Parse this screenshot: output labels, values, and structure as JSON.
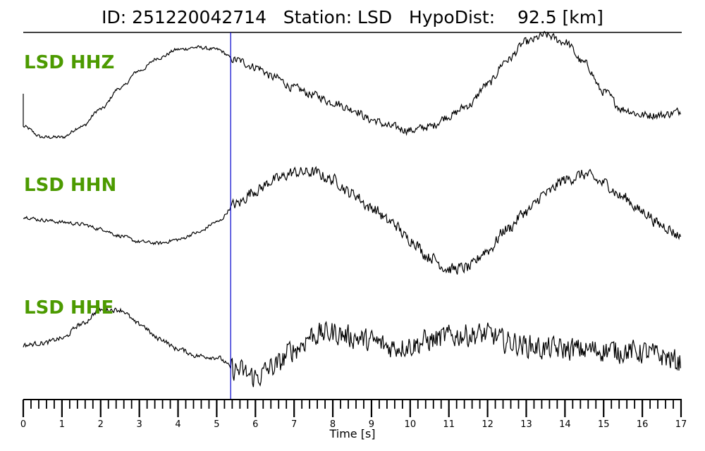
{
  "chart_data": {
    "type": "line",
    "title": "ID: 251220042714   Station: LSD   HypoDist:    92.5 [km]",
    "xlabel": "Time [s]",
    "ylabel": "",
    "xlim": [
      0,
      17
    ],
    "x_ticks": [
      "0",
      "1",
      "2",
      "3",
      "4",
      "5",
      "6",
      "7",
      "8",
      "9",
      "10",
      "11",
      "12",
      "13",
      "14",
      "15",
      "16",
      "17"
    ],
    "minor_tick_step": 0.2,
    "pick_time": 5.36,
    "pick_color": "#0000cc",
    "label_color": "#4c9a00",
    "x_step": 0.5,
    "series": [
      {
        "name": "LSD HHZ",
        "noise_pre": 0.03,
        "noise_post": 0.07,
        "values": [
          -0.73,
          -0.93,
          -0.93,
          -0.73,
          -0.4,
          0,
          0.33,
          0.57,
          0.73,
          0.77,
          0.73,
          0.53,
          0.4,
          0.2,
          0,
          -0.13,
          -0.27,
          -0.4,
          -0.6,
          -0.73,
          -0.8,
          -0.73,
          -0.53,
          -0.33,
          0.07,
          0.53,
          0.87,
          1.0,
          0.87,
          0.47,
          -0.07,
          -0.4,
          -0.51,
          -0.51,
          -0.44
        ]
      },
      {
        "name": "LSD HHN",
        "noise_pre": 0.03,
        "noise_post": 0.1,
        "values": [
          0.03,
          -0.03,
          -0.07,
          -0.11,
          -0.2,
          -0.33,
          -0.44,
          -0.47,
          -0.4,
          -0.27,
          -0.07,
          0.27,
          0.53,
          0.73,
          0.87,
          0.87,
          0.73,
          0.47,
          0.2,
          -0.07,
          -0.4,
          -0.73,
          -0.96,
          -0.93,
          -0.6,
          -0.2,
          0.13,
          0.47,
          0.73,
          0.83,
          0.67,
          0.4,
          0.13,
          -0.13,
          -0.33
        ]
      },
      {
        "name": "LSD HHE",
        "noise_pre": 0.04,
        "noise_post": 0.2,
        "values": [
          0,
          0.04,
          0.13,
          0.4,
          0.67,
          0.67,
          0.4,
          0.13,
          -0.07,
          -0.2,
          -0.23,
          -0.47,
          -0.6,
          -0.4,
          -0.07,
          0.2,
          0.24,
          0.16,
          0.07,
          -0.03,
          0,
          0.09,
          0.17,
          0.2,
          0.2,
          0.07,
          0,
          -0.07,
          -0.07,
          -0.09,
          -0.09,
          -0.11,
          -0.13,
          -0.2,
          -0.33
        ]
      }
    ]
  }
}
